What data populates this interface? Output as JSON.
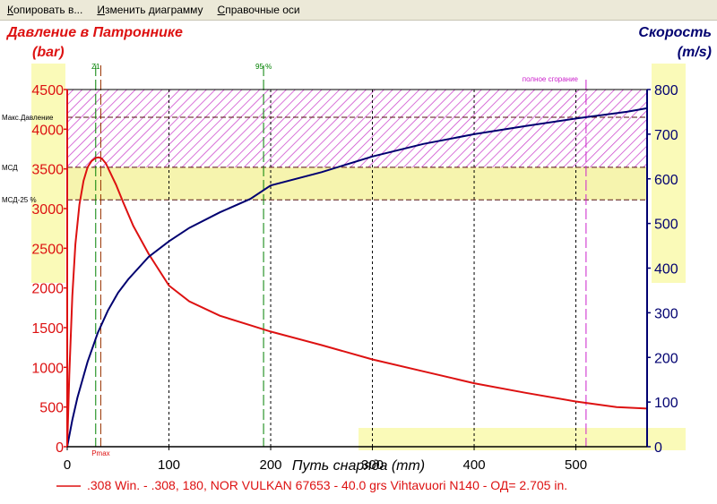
{
  "menu": {
    "items": [
      "Копировать в...",
      "Изменить диаграмму",
      "Справочные оси"
    ]
  },
  "colors": {
    "pressure": "#dd1111",
    "velocity": "#000070",
    "max_band": "#cc44cc",
    "mcd_band": "#f4f2a0",
    "highlight": "#fafab8",
    "z1_line": "#008000",
    "burn_line": "#cc22cc",
    "grid": "#000000"
  },
  "chart_data": {
    "type": "line",
    "title_left": "Давление в Патроннике",
    "unit_left": "(bar)",
    "title_right": "Скорость",
    "unit_right": "(m/s)",
    "xlabel": "Путь снаряда (mm)",
    "xlim": [
      0,
      570
    ],
    "ylim_left": [
      0,
      4500
    ],
    "ylim_right": [
      0,
      800
    ],
    "x_ticks": [
      0,
      100,
      200,
      300,
      400,
      500
    ],
    "y_left_ticks": [
      0,
      500,
      1000,
      1500,
      2000,
      2500,
      3000,
      3500,
      4000,
      4500
    ],
    "y_right_ticks": [
      0,
      100,
      200,
      300,
      400,
      500,
      600,
      700,
      800
    ],
    "grid_x": [
      100,
      200,
      300,
      400,
      500
    ],
    "reference_lines": {
      "max_pressure": {
        "label": "Макс.Давление",
        "value": 4150
      },
      "mcd": {
        "label": "МСД",
        "value": 3520
      },
      "mcd_25": {
        "label": "МСД-25 %",
        "value": 3110
      }
    },
    "markers": {
      "z1": {
        "label": "Z1",
        "x": 28
      },
      "pmax": {
        "label": "Pmax",
        "x": 33
      },
      "p95": {
        "label": "95 %",
        "x": 193
      },
      "full_burn": {
        "label": "полное сгорание",
        "x": 510
      }
    },
    "legend": ".308 Win. - .308, 180, NOR VULKAN 67653 - 40.0 grs Vihtavuori N140 - ОД= 2.705 in.",
    "series": [
      {
        "name": "Давление",
        "axis": "left",
        "x": [
          0,
          2,
          5,
          8,
          12,
          16,
          20,
          24,
          28,
          31,
          34,
          38,
          42,
          48,
          55,
          65,
          80,
          100,
          120,
          150,
          180,
          200,
          250,
          300,
          350,
          400,
          450,
          500,
          540,
          570
        ],
        "values": [
          0,
          900,
          1900,
          2550,
          3050,
          3350,
          3520,
          3600,
          3640,
          3645,
          3630,
          3570,
          3460,
          3300,
          3080,
          2780,
          2430,
          2030,
          1830,
          1650,
          1530,
          1450,
          1280,
          1100,
          950,
          800,
          680,
          570,
          500,
          480
        ]
      },
      {
        "name": "Скорость",
        "axis": "right",
        "x": [
          0,
          5,
          10,
          20,
          30,
          40,
          50,
          60,
          80,
          100,
          120,
          150,
          180,
          200,
          250,
          300,
          350,
          400,
          450,
          500,
          550,
          570
        ],
        "values": [
          0,
          60,
          110,
          190,
          255,
          305,
          345,
          375,
          425,
          460,
          490,
          525,
          555,
          585,
          615,
          650,
          678,
          700,
          718,
          735,
          750,
          758
        ]
      }
    ]
  }
}
